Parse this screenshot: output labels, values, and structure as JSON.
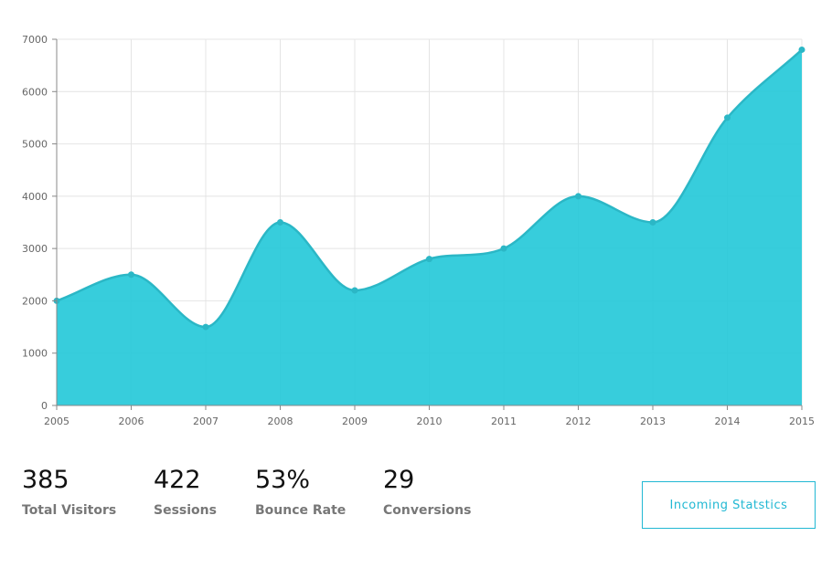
{
  "chart_data": {
    "type": "area",
    "x": [
      "2005",
      "2006",
      "2007",
      "2008",
      "2009",
      "2010",
      "2011",
      "2012",
      "2013",
      "2014",
      "2015"
    ],
    "values": [
      2000,
      2500,
      1500,
      3500,
      2200,
      2800,
      3000,
      4000,
      3500,
      5500,
      6800
    ],
    "ylim": [
      0,
      7000
    ],
    "yticks": [
      "0",
      "1000",
      "2000",
      "3000",
      "4000",
      "5000",
      "6000",
      "7000"
    ],
    "grid": true,
    "fill_color": "#21c8d8",
    "line_color": "#2bb7c6",
    "title": "",
    "xlabel": "",
    "ylabel": ""
  },
  "stats": [
    {
      "value": "385",
      "label": "Total Visitors"
    },
    {
      "value": "422",
      "label": "Sessions"
    },
    {
      "value": "53%",
      "label": "Bounce Rate"
    },
    {
      "value": "29",
      "label": "Conversions"
    }
  ],
  "button": {
    "label": "Incoming Statstics",
    "color": "#21b8d3"
  }
}
